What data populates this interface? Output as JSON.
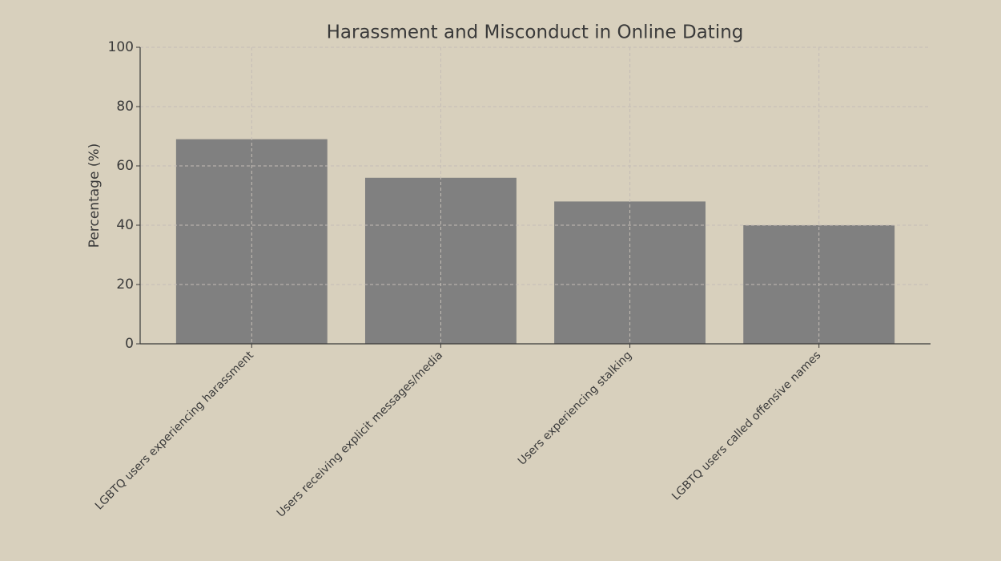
{
  "chart_data": {
    "type": "bar",
    "title": "Harassment and Misconduct in Online Dating",
    "y_label": "Percentage (%)",
    "categories": [
      "LGBTQ users experiencing harassment",
      "Users receiving explicit messages/media",
      "Users experiencing stalking",
      "LGBTQ users called offensive names"
    ],
    "values": [
      69,
      56,
      48,
      40
    ],
    "color": "#808080",
    "ylim": [
      0,
      100
    ],
    "yticks": [
      0,
      20,
      40,
      60,
      80,
      100
    ],
    "grid": true
  }
}
